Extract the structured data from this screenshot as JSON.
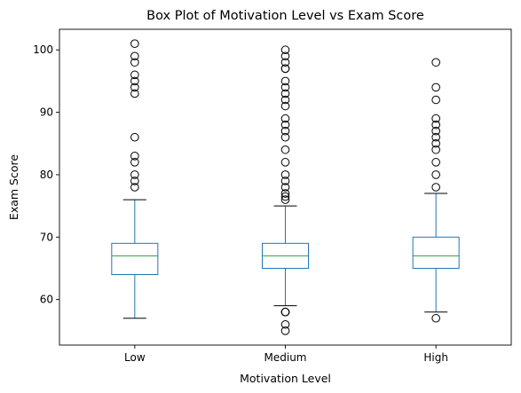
{
  "chart_data": {
    "type": "box",
    "title": "Box Plot of Motivation Level vs Exam Score",
    "xlabel": "Motivation Level",
    "ylabel": "Exam Score",
    "ylim": [
      52.7,
      103.3
    ],
    "yticks": [
      60,
      70,
      80,
      90,
      100
    ],
    "grid": false,
    "colors": {
      "box": "#1f77b4",
      "median": "#2ca02c",
      "whisker": "#1f77b4",
      "cap": "#000000",
      "flier": "#000000"
    },
    "categories": [
      "Low",
      "Medium",
      "High"
    ],
    "boxes": [
      {
        "category": "Low",
        "whisker_low": 57,
        "q1": 64,
        "median": 67,
        "q3": 69,
        "whisker_high": 76,
        "fliers": [
          78,
          79,
          80,
          82,
          83,
          86,
          93,
          94,
          95,
          96,
          98,
          99,
          101
        ]
      },
      {
        "category": "Medium",
        "whisker_low": 59,
        "q1": 65,
        "median": 67,
        "q3": 69,
        "whisker_high": 75,
        "fliers": [
          55,
          56,
          58,
          58,
          58,
          76,
          76.5,
          77,
          78,
          79,
          80,
          82,
          84,
          86,
          87,
          88,
          89,
          91,
          92,
          93,
          94,
          95,
          97,
          97,
          98,
          99,
          100
        ]
      },
      {
        "category": "High",
        "whisker_low": 58,
        "q1": 65,
        "median": 67,
        "q3": 70,
        "whisker_high": 77,
        "fliers": [
          57,
          78,
          80,
          82,
          84,
          85,
          86,
          87,
          88,
          89,
          92,
          94,
          98
        ]
      }
    ]
  }
}
